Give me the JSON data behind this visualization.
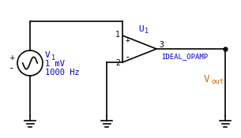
{
  "bg_color": "#ffffff",
  "line_color": "#000000",
  "text_color_blue": "#0000cc",
  "text_color_orange": "#cc6600",
  "v1_label": "V",
  "v1_sub": "1",
  "v1_detail1": "1 mV",
  "v1_detail2": "1000 Hz",
  "plus_label": "+",
  "minus_label": "-",
  "u1_label": "U",
  "u1_sub": "1",
  "opamp_label": "IDEAL_OPAMP",
  "pin1_label": "1",
  "pin2_label": "2",
  "pin3_label": "3",
  "plus_pin": "+",
  "minus_pin": "-",
  "vout_label": "V",
  "vout_sub": "out",
  "figsize": [
    3.05,
    1.75
  ],
  "dpi": 100
}
